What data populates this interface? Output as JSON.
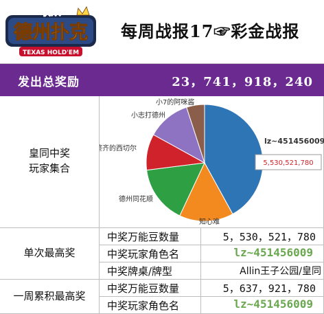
{
  "logo": {
    "top_text": "联众",
    "main_text": "德州扑克",
    "sub_text": "TEXAS HOLD'EM"
  },
  "report_title": "每周战报17☞彩金战报",
  "total": {
    "label": "发出总奖励",
    "value": "23，741，918，240"
  },
  "section_pie_label": [
    "皇同中奖",
    "玩家集合"
  ],
  "chart_data": {
    "type": "pie",
    "slices": [
      {
        "label": "lz~451456009",
        "value": 42,
        "color": "#2e75b6"
      },
      {
        "label": "知心难",
        "value": 15,
        "color": "#f28a1f"
      },
      {
        "label": "德州同花顺",
        "value": 16,
        "color": "#2ea043"
      },
      {
        "label": "整齐的西切尔",
        "value": 10,
        "color": "#d0222a"
      },
      {
        "label": "小志打德州",
        "value": 12,
        "color": "#8e73c2"
      },
      {
        "label": "小7的阿咪酱",
        "value": 5,
        "color": "#8b5e4b"
      }
    ],
    "annotation": "5,530,521,780"
  },
  "single_max": {
    "label": "单次最高奖",
    "rows": [
      {
        "key": "中奖万能豆数量",
        "value": "5，530，521，780",
        "style": "num"
      },
      {
        "key": "中奖玩家角色名",
        "value": "lz~451456009",
        "style": "green"
      },
      {
        "key": "中奖牌桌/牌型",
        "value": "Allin王子公园/皇同",
        "style": "text"
      }
    ]
  },
  "week_max": {
    "label": "一周累积最高奖",
    "rows": [
      {
        "key": "中奖万能豆数量",
        "value": "5，637，921，780",
        "style": "num"
      },
      {
        "key": "中奖玩家角色名",
        "value": "lz~451456009",
        "style": "green"
      }
    ]
  }
}
